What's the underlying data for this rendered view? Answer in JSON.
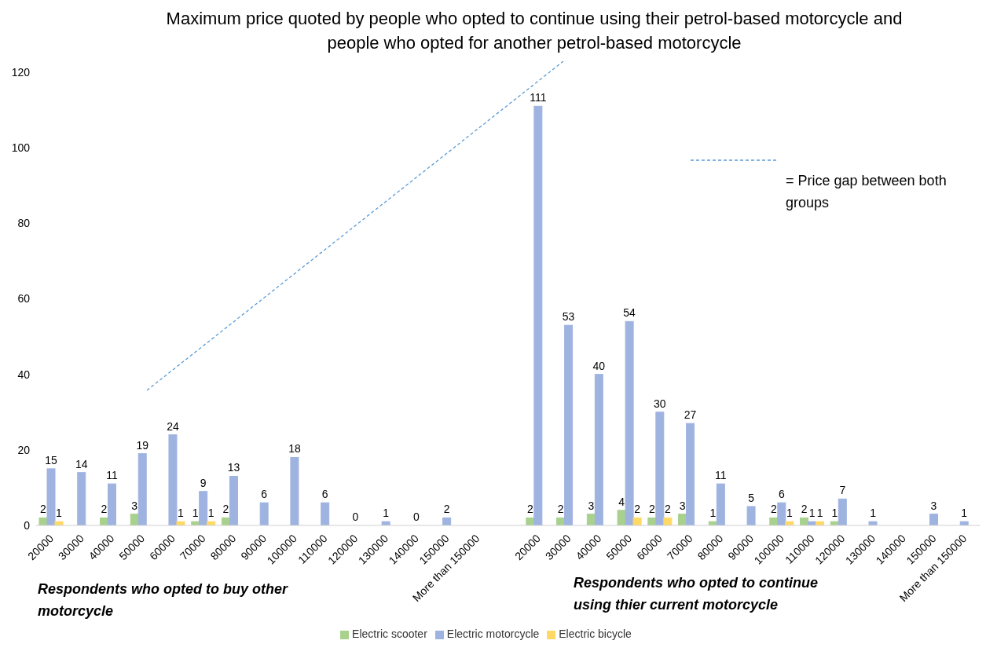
{
  "chart_data": {
    "type": "bar",
    "title": "Maximum price quoted by people who opted to continue using their petrol-based motorcycle and people who opted for another petrol-based motorcycle",
    "categories": [
      "20000",
      "30000",
      "40000",
      "50000",
      "60000",
      "70000",
      "80000",
      "90000",
      "100000",
      "110000",
      "120000",
      "130000",
      "140000",
      "150000",
      "More than 150000",
      null,
      "20000",
      "30000",
      "40000",
      "50000",
      "60000",
      "70000",
      "80000",
      "90000",
      "100000",
      "110000",
      "120000",
      "130000",
      "140000",
      "150000",
      "More than 150000"
    ],
    "series": [
      {
        "name": "Electric scooter",
        "color": "#a9d18e",
        "values": [
          2,
          null,
          2,
          3,
          null,
          1,
          2,
          null,
          null,
          null,
          null,
          null,
          null,
          null,
          null,
          null,
          2,
          2,
          3,
          4,
          2,
          3,
          1,
          null,
          2,
          2,
          1,
          null,
          null,
          null,
          null
        ]
      },
      {
        "name": "Electric motorcycle",
        "color": "#9fb3e0",
        "values": [
          15,
          14,
          11,
          19,
          24,
          9,
          13,
          6,
          18,
          6,
          0,
          1,
          0,
          2,
          null,
          null,
          111,
          53,
          40,
          54,
          30,
          27,
          11,
          5,
          6,
          1,
          7,
          1,
          null,
          3,
          1
        ]
      },
      {
        "name": "Electric bicycle",
        "color": "#ffd966",
        "values": [
          1,
          null,
          null,
          null,
          1,
          1,
          null,
          null,
          null,
          null,
          null,
          null,
          null,
          null,
          null,
          null,
          null,
          null,
          null,
          2,
          2,
          null,
          null,
          null,
          1,
          1,
          null,
          null,
          null,
          null,
          null
        ]
      }
    ],
    "ylim": [
      0,
      120
    ],
    "yticks": [
      0,
      20,
      40,
      60,
      80,
      100,
      120
    ],
    "grid": false,
    "legend": "bottom",
    "data_labels": true,
    "annotations": [
      "= Price gap between both groups",
      "Respondents who opted to buy other motorcycle",
      "Respondents who opted to continue using thier current motorcycle"
    ]
  }
}
